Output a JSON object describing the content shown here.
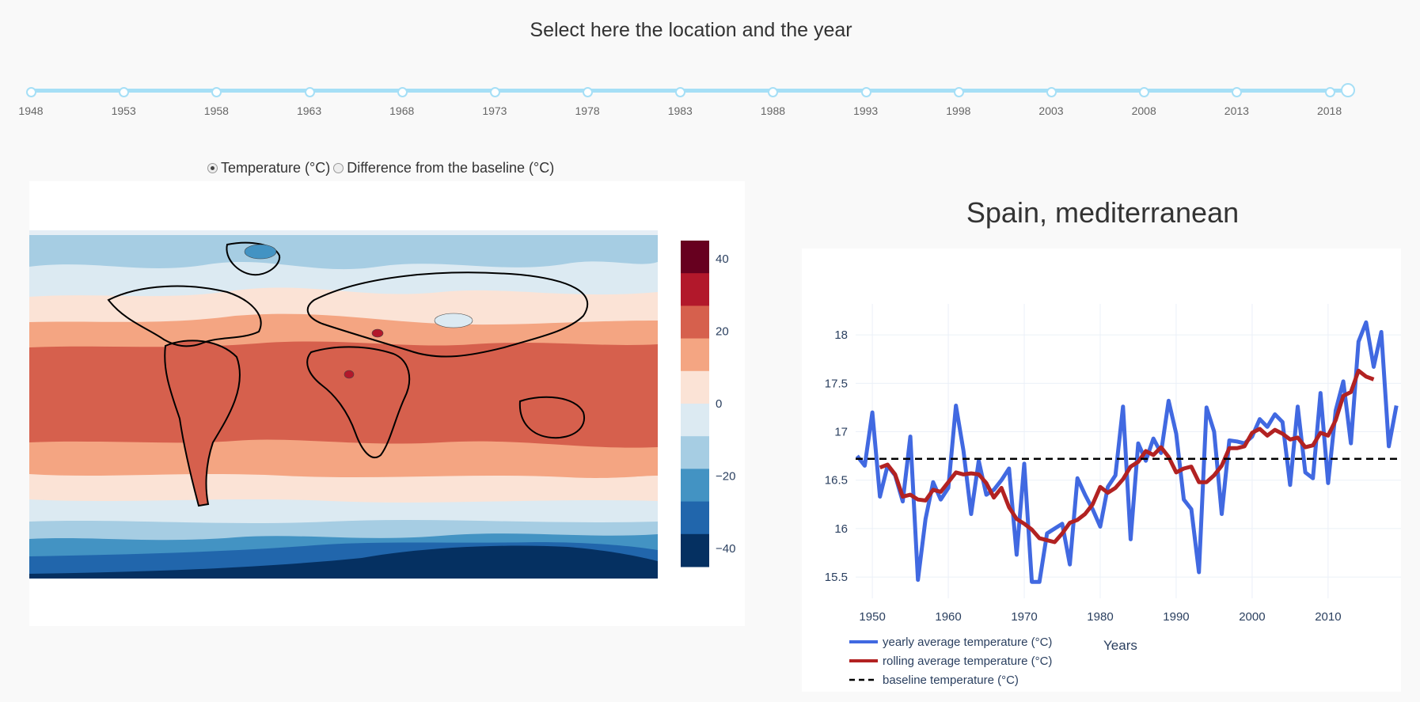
{
  "header": {
    "title": "Select here the location and the year"
  },
  "year_slider": {
    "marks": [
      "1948",
      "1953",
      "1958",
      "1963",
      "1968",
      "1973",
      "1978",
      "1983",
      "1988",
      "1993",
      "1998",
      "2003",
      "2008",
      "2013",
      "2018"
    ],
    "min": 1948,
    "max": 2019,
    "value": 2019
  },
  "map_mode": {
    "options": [
      "Temperature (°C)",
      "Difference from the baseline (°C)"
    ],
    "selected": 0
  },
  "map": {
    "colorbar_ticks": [
      "40",
      "20",
      "0",
      "−20",
      "−40"
    ],
    "colors": [
      "#67001f",
      "#b2182b",
      "#d6604d",
      "#f4a582",
      "#fbe3d6",
      "#dceaf2",
      "#a6cde3",
      "#4393c3",
      "#2166ac",
      "#053061"
    ]
  },
  "chart": {
    "title": "Spain, mediterranean",
    "xlabel": "Years",
    "legend": [
      "yearly average temperature (°C)",
      "rolling average temperature (°C)",
      "baseline temperature (°C)"
    ],
    "colors": {
      "yearly": "#4169e1",
      "rolling": "#b22222",
      "baseline": "#000000"
    }
  },
  "chart_data": {
    "type": "line",
    "x": [
      1948,
      1949,
      1950,
      1951,
      1952,
      1953,
      1954,
      1955,
      1956,
      1957,
      1958,
      1959,
      1960,
      1961,
      1962,
      1963,
      1964,
      1965,
      1966,
      1967,
      1968,
      1969,
      1970,
      1971,
      1972,
      1973,
      1974,
      1975,
      1976,
      1977,
      1978,
      1979,
      1980,
      1981,
      1982,
      1983,
      1984,
      1985,
      1986,
      1987,
      1988,
      1989,
      1990,
      1991,
      1992,
      1993,
      1994,
      1995,
      1996,
      1997,
      1998,
      1999,
      2000,
      2001,
      2002,
      2003,
      2004,
      2005,
      2006,
      2007,
      2008,
      2009,
      2010,
      2011,
      2012,
      2013,
      2014,
      2015,
      2016,
      2017,
      2018,
      2019
    ],
    "series": [
      {
        "name": "yearly average temperature (°C)",
        "values": [
          16.75,
          16.65,
          17.2,
          16.33,
          16.65,
          16.55,
          16.28,
          16.95,
          15.47,
          16.1,
          16.48,
          16.3,
          16.42,
          17.27,
          16.8,
          16.15,
          16.7,
          16.35,
          16.4,
          16.5,
          16.62,
          15.73,
          16.67,
          15.45,
          15.45,
          15.95,
          16.0,
          16.05,
          15.63,
          16.52,
          16.35,
          16.2,
          16.02,
          16.43,
          16.55,
          17.26,
          15.89,
          16.88,
          16.7,
          16.93,
          16.78,
          17.32,
          16.98,
          16.3,
          16.2,
          15.55,
          17.25,
          17.0,
          16.15,
          16.91,
          16.9,
          16.88,
          16.95,
          17.13,
          17.05,
          17.18,
          17.1,
          16.45,
          17.26,
          16.58,
          16.52,
          17.4,
          16.47,
          17.22,
          17.52,
          16.88,
          17.93,
          18.13,
          17.67,
          18.03,
          16.85,
          17.27
        ]
      },
      {
        "name": "rolling average temperature (°C)",
        "values": [
          null,
          null,
          null,
          16.63,
          16.66,
          16.56,
          16.33,
          16.35,
          16.3,
          16.29,
          16.4,
          16.38,
          16.48,
          16.58,
          16.56,
          16.57,
          16.56,
          16.47,
          16.32,
          16.42,
          16.22,
          16.1,
          16.05,
          15.99,
          15.9,
          15.88,
          15.86,
          15.95,
          16.06,
          16.09,
          16.15,
          16.25,
          16.43,
          16.37,
          16.42,
          16.51,
          16.64,
          16.69,
          16.8,
          16.76,
          16.84,
          16.74,
          16.58,
          16.62,
          16.64,
          16.48,
          16.48,
          16.55,
          16.65,
          16.83,
          16.83,
          16.85,
          16.99,
          17.03,
          16.96,
          17.02,
          16.98,
          16.92,
          16.94,
          16.84,
          16.86,
          16.99,
          16.96,
          17.12,
          17.37,
          17.41,
          17.63,
          17.57,
          17.54,
          null,
          null,
          null
        ]
      },
      {
        "name": "baseline temperature (°C)",
        "constant": 16.72
      }
    ],
    "xlabel": "Years",
    "ylabel": "",
    "xlim": [
      1947.8,
      2019.6
    ],
    "ylim": [
      15.28,
      18.32
    ],
    "xticks": [
      1950,
      1960,
      1970,
      1980,
      1990,
      2000,
      2010
    ],
    "yticks": [
      15.5,
      16,
      16.5,
      17,
      17.5,
      18
    ],
    "grid": true,
    "legend_position": "bottom-left"
  }
}
